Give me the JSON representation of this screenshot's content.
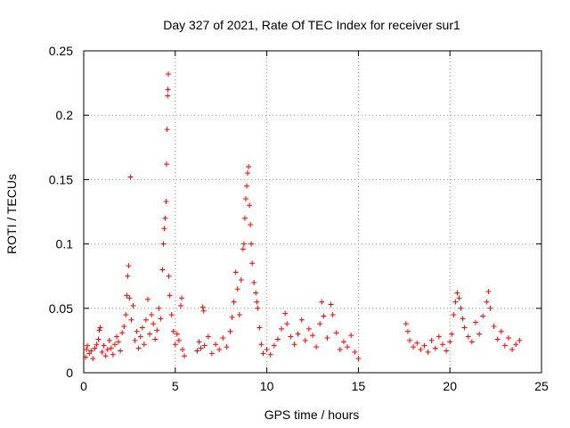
{
  "chart_data": {
    "type": "scatter",
    "title": "Day 327 of 2021, Rate Of TEC Index for receiver sur1",
    "xlabel": "GPS time / hours",
    "ylabel": "ROTI / TECUs",
    "xlim": [
      0,
      25
    ],
    "ylim": [
      0,
      0.25
    ],
    "x_ticks": [
      0,
      5,
      10,
      15,
      20,
      25
    ],
    "y_ticks": [
      0,
      0.05,
      0.1,
      0.15,
      0.2,
      0.25
    ],
    "x_tick_labels": [
      "0",
      "5",
      "10",
      "15",
      "20",
      "25"
    ],
    "y_tick_labels": [
      "0",
      "0.05",
      "0.1",
      "0.15",
      "0.2",
      "0.25"
    ],
    "grid": true,
    "marker": "plus",
    "color": "#ff0000",
    "series": [
      {
        "name": "ROTI",
        "points": [
          [
            0.1,
            0.012
          ],
          [
            0.15,
            0.018
          ],
          [
            0.2,
            0.021
          ],
          [
            0.3,
            0.015
          ],
          [
            0.4,
            0.017
          ],
          [
            0.5,
            0.011
          ],
          [
            0.6,
            0.019
          ],
          [
            0.7,
            0.022
          ],
          [
            0.8,
            0.026
          ],
          [
            0.85,
            0.033
          ],
          [
            0.9,
            0.035
          ],
          [
            1.0,
            0.016
          ],
          [
            1.1,
            0.021
          ],
          [
            1.2,
            0.013
          ],
          [
            1.3,
            0.018
          ],
          [
            1.4,
            0.025
          ],
          [
            1.5,
            0.019
          ],
          [
            1.6,
            0.014
          ],
          [
            1.7,
            0.022
          ],
          [
            1.8,
            0.028
          ],
          [
            1.9,
            0.024
          ],
          [
            2.0,
            0.017
          ],
          [
            2.1,
            0.031
          ],
          [
            2.2,
            0.036
          ],
          [
            2.3,
            0.045
          ],
          [
            2.35,
            0.06
          ],
          [
            2.4,
            0.075
          ],
          [
            2.45,
            0.083
          ],
          [
            2.5,
            0.058
          ],
          [
            2.55,
            0.152
          ],
          [
            2.6,
            0.041
          ],
          [
            2.7,
            0.052
          ],
          [
            2.8,
            0.025
          ],
          [
            2.9,
            0.032
          ],
          [
            3.0,
            0.019
          ],
          [
            3.1,
            0.028
          ],
          [
            3.2,
            0.035
          ],
          [
            3.3,
            0.022
          ],
          [
            3.4,
            0.041
          ],
          [
            3.5,
            0.057
          ],
          [
            3.6,
            0.03
          ],
          [
            3.7,
            0.045
          ],
          [
            3.8,
            0.038
          ],
          [
            3.9,
            0.026
          ],
          [
            4.0,
            0.033
          ],
          [
            4.1,
            0.05
          ],
          [
            4.2,
            0.042
          ],
          [
            4.3,
            0.08
          ],
          [
            4.35,
            0.1
          ],
          [
            4.4,
            0.112
          ],
          [
            4.45,
            0.12
          ],
          [
            4.5,
            0.133
          ],
          [
            4.52,
            0.162
          ],
          [
            4.55,
            0.189
          ],
          [
            4.58,
            0.215
          ],
          [
            4.6,
            0.22
          ],
          [
            4.62,
            0.232
          ],
          [
            4.65,
            0.075
          ],
          [
            4.7,
            0.06
          ],
          [
            4.8,
            0.045
          ],
          [
            4.9,
            0.032
          ],
          [
            5.0,
            0.022
          ],
          [
            5.1,
            0.03
          ],
          [
            5.2,
            0.025
          ],
          [
            5.3,
            0.052
          ],
          [
            5.35,
            0.058
          ],
          [
            5.4,
            0.018
          ],
          [
            5.5,
            0.013
          ],
          [
            6.2,
            0.017
          ],
          [
            6.3,
            0.024
          ],
          [
            6.4,
            0.019
          ],
          [
            6.5,
            0.051
          ],
          [
            6.55,
            0.048
          ],
          [
            6.6,
            0.021
          ],
          [
            6.8,
            0.028
          ],
          [
            7.0,
            0.015
          ],
          [
            7.2,
            0.022
          ],
          [
            7.4,
            0.018
          ],
          [
            7.6,
            0.027
          ],
          [
            7.8,
            0.02
          ],
          [
            8.0,
            0.032
          ],
          [
            8.1,
            0.043
          ],
          [
            8.2,
            0.055
          ],
          [
            8.3,
            0.078
          ],
          [
            8.4,
            0.065
          ],
          [
            8.5,
            0.045
          ],
          [
            8.6,
            0.072
          ],
          [
            8.7,
            0.096
          ],
          [
            8.75,
            0.1
          ],
          [
            8.8,
            0.12
          ],
          [
            8.85,
            0.135
          ],
          [
            8.9,
            0.145
          ],
          [
            8.95,
            0.155
          ],
          [
            9.0,
            0.16
          ],
          [
            9.05,
            0.13
          ],
          [
            9.1,
            0.115
          ],
          [
            9.15,
            0.1
          ],
          [
            9.2,
            0.085
          ],
          [
            9.3,
            0.07
          ],
          [
            9.4,
            0.062
          ],
          [
            9.45,
            0.055
          ],
          [
            9.5,
            0.05
          ],
          [
            9.6,
            0.035
          ],
          [
            9.7,
            0.022
          ],
          [
            9.8,
            0.015
          ],
          [
            10.0,
            0.018
          ],
          [
            10.2,
            0.014
          ],
          [
            10.4,
            0.021
          ],
          [
            10.6,
            0.026
          ],
          [
            10.8,
            0.034
          ],
          [
            11.0,
            0.046
          ],
          [
            11.1,
            0.038
          ],
          [
            11.3,
            0.028
          ],
          [
            11.5,
            0.022
          ],
          [
            11.7,
            0.03
          ],
          [
            11.9,
            0.041
          ],
          [
            12.1,
            0.025
          ],
          [
            12.3,
            0.034
          ],
          [
            12.5,
            0.029
          ],
          [
            12.7,
            0.02
          ],
          [
            12.9,
            0.038
          ],
          [
            13.0,
            0.055
          ],
          [
            13.1,
            0.044
          ],
          [
            13.3,
            0.027
          ],
          [
            13.5,
            0.053
          ],
          [
            13.6,
            0.045
          ],
          [
            13.8,
            0.031
          ],
          [
            14.0,
            0.018
          ],
          [
            14.2,
            0.024
          ],
          [
            14.4,
            0.02
          ],
          [
            14.6,
            0.029
          ],
          [
            14.8,
            0.016
          ],
          [
            15.0,
            0.011
          ],
          [
            17.6,
            0.038
          ],
          [
            17.7,
            0.032
          ],
          [
            17.8,
            0.025
          ],
          [
            18.0,
            0.02
          ],
          [
            18.2,
            0.023
          ],
          [
            18.4,
            0.018
          ],
          [
            18.6,
            0.021
          ],
          [
            18.8,
            0.016
          ],
          [
            19.0,
            0.025
          ],
          [
            19.2,
            0.019
          ],
          [
            19.4,
            0.028
          ],
          [
            19.6,
            0.022
          ],
          [
            19.8,
            0.017
          ],
          [
            20.0,
            0.024
          ],
          [
            20.1,
            0.03
          ],
          [
            20.2,
            0.045
          ],
          [
            20.3,
            0.055
          ],
          [
            20.4,
            0.062
          ],
          [
            20.5,
            0.058
          ],
          [
            20.6,
            0.05
          ],
          [
            20.7,
            0.042
          ],
          [
            20.8,
            0.035
          ],
          [
            21.0,
            0.028
          ],
          [
            21.2,
            0.024
          ],
          [
            21.4,
            0.039
          ],
          [
            21.6,
            0.03
          ],
          [
            21.8,
            0.044
          ],
          [
            22.0,
            0.055
          ],
          [
            22.1,
            0.063
          ],
          [
            22.2,
            0.05
          ],
          [
            22.4,
            0.036
          ],
          [
            22.6,
            0.026
          ],
          [
            22.8,
            0.032
          ],
          [
            23.0,
            0.021
          ],
          [
            23.2,
            0.027
          ],
          [
            23.4,
            0.018
          ],
          [
            23.6,
            0.022
          ],
          [
            23.8,
            0.025
          ]
        ]
      }
    ]
  }
}
